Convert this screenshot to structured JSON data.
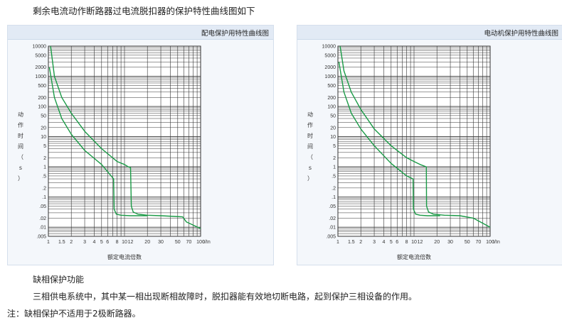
{
  "page": {
    "heading": "剩余电流动作断路器过电流脱扣器的保护特性曲线图如下",
    "section_title": "缺相保护功能",
    "section_body": "三相供电系统中，其中某一相出现断相故障时，脱扣器能有效地切断电路，起到保护三相设备的作用。",
    "note": "注：缺相保护不适用于2极断路器。"
  },
  "colors": {
    "curve": "#1a9a46",
    "grid": "#333333",
    "panel_bg": "#f4f7fb",
    "header_bg": "#e2eaf5"
  },
  "chart_data": [
    {
      "type": "line",
      "title": "配电保护用特性曲线图",
      "xlabel": "额定电流倍数",
      "ylabel": "动作时间（s）",
      "x_axis_unit": "I/In",
      "x_ticks": [
        "1",
        "1.5",
        "2",
        "3",
        "4",
        "5",
        "6",
        "8",
        "10",
        "12",
        "20",
        "30",
        "50",
        "70",
        "100"
      ],
      "y_ticks": [
        "10000",
        "5000",
        "2000",
        "1000",
        "500",
        "200",
        "100",
        "50",
        "20",
        "10",
        "5",
        "2",
        "1",
        ".5",
        ".2",
        ".1",
        ".05",
        ".02",
        ".01",
        ".005"
      ],
      "y_scale": "log",
      "x_scale": "log",
      "xlim": [
        1,
        100
      ],
      "ylim": [
        0.005,
        10000
      ],
      "series": [
        {
          "points": [
            [
              1.07,
              10000
            ],
            [
              1.2,
              1000
            ],
            [
              1.5,
              200
            ],
            [
              2,
              60
            ],
            [
              3,
              15
            ],
            [
              5,
              4
            ],
            [
              8,
              1.5
            ],
            [
              10,
              1.2
            ],
            [
              11.2,
              1.0
            ],
            [
              12,
              0.95
            ],
            [
              12.3,
              0.05
            ],
            [
              13,
              0.032
            ],
            [
              15,
              0.027
            ],
            [
              20,
              0.025
            ],
            [
              30,
              0.024
            ],
            [
              58,
              0.022
            ],
            [
              65,
              0.015
            ],
            [
              100,
              0.009
            ]
          ]
        },
        {
          "points": [
            [
              1.03,
              2000
            ],
            [
              1.2,
              200
            ],
            [
              1.5,
              40
            ],
            [
              2,
              12
            ],
            [
              3,
              3.5
            ],
            [
              5,
              1.2
            ],
            [
              7.2,
              0.4
            ],
            [
              7.3,
              0.04
            ],
            [
              7.8,
              0.027
            ],
            [
              9,
              0.025
            ],
            [
              12,
              0.024
            ],
            [
              20,
              0.024
            ]
          ]
        }
      ]
    },
    {
      "type": "line",
      "title": "电动机保护用特性曲线图",
      "xlabel": "额定电流倍数",
      "ylabel": "动作时间（s）",
      "x_axis_unit": "I/In",
      "x_ticks": [
        "1",
        "1.5",
        "2",
        "3",
        "4",
        "5",
        "6",
        "8",
        "10",
        "12",
        "20",
        "30",
        "50",
        "70",
        "100"
      ],
      "y_ticks": [
        "10000",
        "5000",
        "2000",
        "1000",
        "500",
        "200",
        "100",
        "50",
        "20",
        "10",
        "5",
        "2",
        "1",
        ".5",
        ".2",
        ".1",
        ".05",
        ".02",
        ".01",
        ".005"
      ],
      "y_scale": "log",
      "x_scale": "log",
      "xlim": [
        1,
        100
      ],
      "ylim": [
        0.005,
        10000
      ],
      "series": [
        {
          "points": [
            [
              1.07,
              10000
            ],
            [
              1.2,
              1500
            ],
            [
              1.5,
              300
            ],
            [
              2,
              80
            ],
            [
              3,
              18
            ],
            [
              5,
              5
            ],
            [
              8,
              2
            ],
            [
              10,
              1.5
            ],
            [
              12,
              1.2
            ],
            [
              14.5,
              1.0
            ],
            [
              14.6,
              0.05
            ],
            [
              15.5,
              0.032
            ],
            [
              18,
              0.027
            ],
            [
              25,
              0.025
            ],
            [
              40,
              0.024
            ],
            [
              60,
              0.02
            ],
            [
              100,
              0.01
            ]
          ]
        },
        {
          "points": [
            [
              1.03,
              3000
            ],
            [
              1.2,
              300
            ],
            [
              1.5,
              60
            ],
            [
              2,
              18
            ],
            [
              3,
              5
            ],
            [
              5,
              1.3
            ],
            [
              8,
              0.5
            ],
            [
              9.7,
              0.4
            ],
            [
              9.8,
              0.04
            ],
            [
              10.5,
              0.027
            ],
            [
              12,
              0.025
            ],
            [
              15,
              0.024
            ],
            [
              22,
              0.024
            ]
          ]
        }
      ]
    }
  ]
}
